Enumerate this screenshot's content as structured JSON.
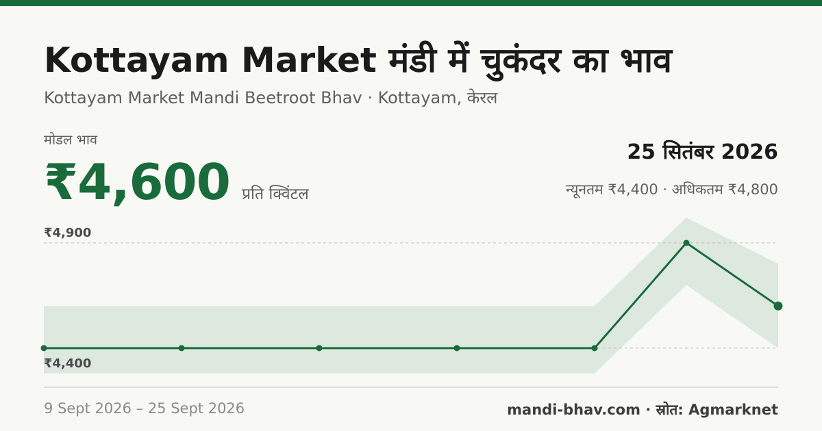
{
  "header": {
    "title": "Kottayam Market मंडी में चुकंदर का भाव",
    "subtitle": "Kottayam Market Mandi Beetroot Bhav · Kottayam, केरल"
  },
  "price": {
    "label": "मोडल भाव",
    "value": "₹4,600",
    "unit": "प्रति क्विंटल"
  },
  "summary": {
    "date": "25 सितंबर 2026",
    "range_text": "न्यूनतम ₹4,400 · अधिकतम ₹4,800"
  },
  "chart_data": {
    "type": "line",
    "x": [
      "2026-09-09",
      "2026-09-12",
      "2026-09-15",
      "2026-09-18",
      "2026-09-21",
      "2026-09-23",
      "2026-09-25"
    ],
    "series": [
      {
        "values": [
          4400,
          4400,
          4400,
          4400,
          4400,
          4900,
          4600
        ]
      }
    ],
    "band": {
      "min": [
        4280,
        4280,
        4280,
        4280,
        4280,
        4700,
        4400
      ],
      "max": [
        4600,
        4600,
        4600,
        4600,
        4600,
        5020,
        4800
      ]
    },
    "y_tick_labels": [
      "₹4,900",
      "₹4,400"
    ],
    "y_ticks": [
      4900,
      4400
    ],
    "ylim": [
      4250,
      5030
    ],
    "grid": "dashed lines at labeled ticks",
    "colors": {
      "line": "#1a6b3c",
      "band": "#dde8df",
      "grid": "#bdbdbd"
    }
  },
  "footer": {
    "date_range": "9 Sept 2026 – 25 Sept 2026",
    "source": "mandi-bhav.com · स्रोत: Agmarknet"
  }
}
